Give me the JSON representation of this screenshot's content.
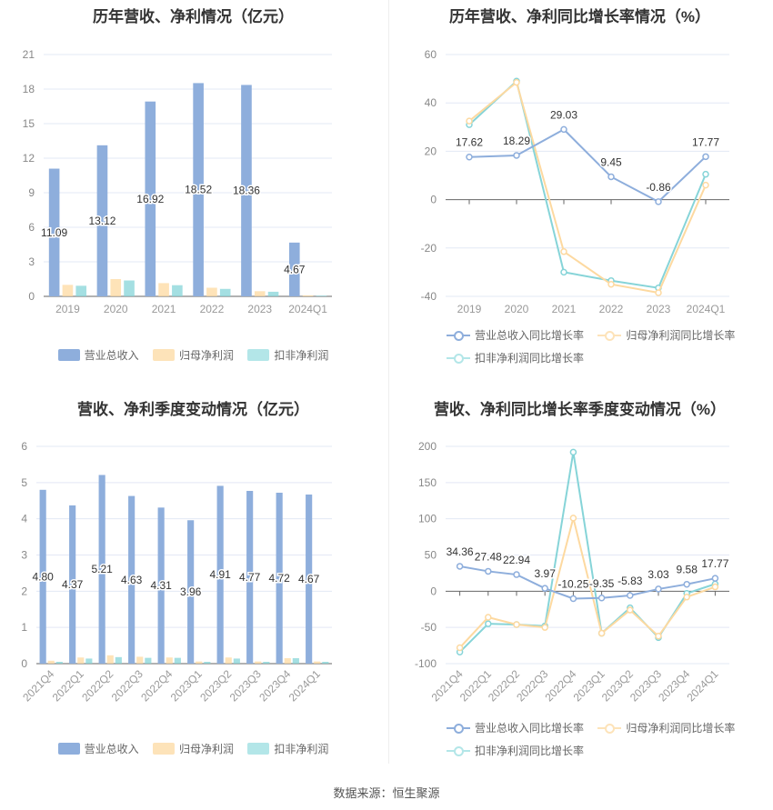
{
  "colors": {
    "revenue": "#8eaedc",
    "net": "#fdd9a0",
    "deducted": "#86d4d8"
  },
  "footer": "数据来源：恒生聚源",
  "chart_data": [
    {
      "type": "bar",
      "title": "历年营收、净利情况（亿元）",
      "categories": [
        "2019",
        "2020",
        "2021",
        "2022",
        "2023",
        "2024Q1"
      ],
      "ylim": [
        0,
        21
      ],
      "yticks": [
        0,
        3,
        6,
        9,
        12,
        15,
        18,
        21
      ],
      "grid": true,
      "legend_position": "bottom",
      "series": [
        {
          "name": "营业总收入",
          "values": [
            11.09,
            13.12,
            16.92,
            18.52,
            18.36,
            4.67
          ],
          "labels": [
            "11.09",
            "13.12",
            "16.92",
            "18.52",
            "18.36",
            "4.67"
          ]
        },
        {
          "name": "归母净利润",
          "values": [
            1.0,
            1.5,
            1.15,
            0.75,
            0.45,
            0.08
          ]
        },
        {
          "name": "扣非净利润",
          "values": [
            0.92,
            1.38,
            0.97,
            0.65,
            0.4,
            0.06
          ]
        }
      ]
    },
    {
      "type": "line",
      "title": "历年营收、净利同比增长率情况（%）",
      "categories": [
        "2019",
        "2020",
        "2021",
        "2022",
        "2023",
        "2024Q1"
      ],
      "ylim": [
        -40,
        60
      ],
      "yticks": [
        -40,
        -20,
        0,
        20,
        40,
        60
      ],
      "grid": true,
      "legend_position": "bottom",
      "series": [
        {
          "name": "营业总收入同比增长率",
          "values": [
            17.62,
            18.29,
            29.03,
            9.45,
            -0.86,
            17.77
          ],
          "labels": [
            "17.62",
            "18.29",
            "29.03",
            "9.45",
            "-0.86",
            "17.77"
          ]
        },
        {
          "name": "归母净利润同比增长率",
          "values": [
            32.5,
            48.5,
            -21.5,
            -35,
            -38.5,
            6
          ]
        },
        {
          "name": "扣非净利润同比增长率",
          "values": [
            31,
            49,
            -30,
            -33.5,
            -36.5,
            10.5
          ]
        }
      ]
    },
    {
      "type": "bar",
      "title": "营收、净利季度变动情况（亿元）",
      "categories": [
        "2021Q4",
        "2022Q1",
        "2022Q2",
        "2022Q3",
        "2022Q4",
        "2023Q1",
        "2023Q2",
        "2023Q3",
        "2023Q4",
        "2024Q1"
      ],
      "ylim": [
        0,
        6
      ],
      "yticks": [
        0,
        1,
        2,
        3,
        4,
        5,
        6
      ],
      "grid": true,
      "legend_position": "bottom",
      "series": [
        {
          "name": "营业总收入",
          "values": [
            4.8,
            4.37,
            5.21,
            4.63,
            4.31,
            3.96,
            4.91,
            4.77,
            4.72,
            4.67
          ],
          "labels": [
            "4.80",
            "4.37",
            "5.21",
            "4.63",
            "4.31",
            "3.96",
            "4.91",
            "4.77",
            "4.72",
            "4.67"
          ]
        },
        {
          "name": "归母净利润",
          "values": [
            0.08,
            0.17,
            0.23,
            0.19,
            0.17,
            0.06,
            0.17,
            0.06,
            0.15,
            0.06
          ]
        },
        {
          "name": "扣非净利润",
          "values": [
            0.05,
            0.14,
            0.18,
            0.16,
            0.16,
            0.05,
            0.14,
            0.05,
            0.15,
            0.05
          ]
        }
      ]
    },
    {
      "type": "line",
      "title": "营收、净利同比增长率季度变动情况（%）",
      "categories": [
        "2021Q4",
        "2022Q1",
        "2022Q2",
        "2022Q3",
        "2022Q4",
        "2023Q1",
        "2023Q2",
        "2023Q3",
        "2023Q4",
        "2024Q1"
      ],
      "ylim": [
        -100,
        200
      ],
      "yticks": [
        -100,
        -50,
        0,
        50,
        100,
        150,
        200
      ],
      "grid": true,
      "legend_position": "bottom",
      "series": [
        {
          "name": "营业总收入同比增长率",
          "values": [
            34.36,
            27.48,
            22.94,
            3.97,
            -10.25,
            -9.35,
            -5.83,
            3.03,
            9.58,
            17.77
          ],
          "labels": [
            "34.36",
            "27.48",
            "22.94",
            "3.97",
            "-10.25",
            "-9.35",
            "-5.83",
            "3.03",
            "9.58",
            "17.77"
          ]
        },
        {
          "name": "归母净利润同比增长率",
          "values": [
            -78,
            -36,
            -46,
            -50,
            101,
            -58,
            -26,
            -62,
            -8,
            6
          ]
        },
        {
          "name": "扣非净利润同比增长率",
          "values": [
            -84,
            -45,
            -46,
            -48,
            192,
            -58,
            -23,
            -64,
            -3,
            10
          ]
        }
      ]
    }
  ]
}
